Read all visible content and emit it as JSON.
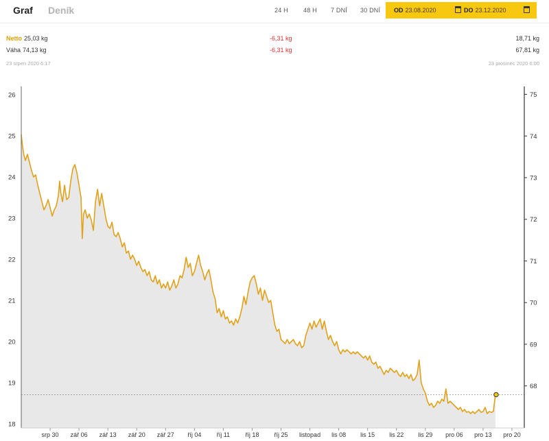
{
  "tabs": {
    "graf": "Graf",
    "denik": "Deník"
  },
  "ranges": [
    "24 H",
    "48 H",
    "7 DNÍ",
    "30 DNÍ"
  ],
  "date_from": {
    "prefix": "OD",
    "value": "23.08.2020"
  },
  "date_to": {
    "prefix": "DO",
    "value": "23.12.2020"
  },
  "summary": {
    "netto": {
      "label": "Netto",
      "start": "25,03 kg",
      "delta": "-6,31 kg",
      "end": "18,71 kg"
    },
    "vaha": {
      "label": "Váha",
      "start": "74,13 kg",
      "delta": "-6,31 kg",
      "end": "67,81 kg"
    },
    "start_time": "23 srpen 2020 6:17",
    "end_time": "23 prosinec 2020 6:00"
  },
  "colors": {
    "accent": "#f7c80f",
    "line": "#e0a21a",
    "delta": "#e0312d",
    "area": "#e8e8e8"
  },
  "chart_data": {
    "type": "area",
    "y_left": {
      "ticks": [
        18,
        19,
        20,
        21,
        22,
        23,
        24,
        25,
        26
      ],
      "range": [
        17.9,
        26.2
      ]
    },
    "y_right": {
      "ticks": [
        68,
        69,
        70,
        71,
        72,
        73,
        74,
        75
      ],
      "range": [
        66.99,
        75.19
      ]
    },
    "x_ticks": [
      "srp 30",
      "zář 06",
      "zář 13",
      "zář 20",
      "zář 27",
      "říj 04",
      "říj 11",
      "říj 18",
      "říj 25",
      "listopad",
      "lis 08",
      "lis 15",
      "lis 22",
      "lis 29",
      "pro 06",
      "pro 13",
      "pro 20"
    ],
    "x_domain_days": 122,
    "reference_line": 18.71,
    "series": [
      {
        "name": "Netto",
        "points": [
          [
            0,
            25.03
          ],
          [
            0.3,
            24.75
          ],
          [
            0.6,
            24.55
          ],
          [
            1,
            24.4
          ],
          [
            1.5,
            24.55
          ],
          [
            2,
            24.35
          ],
          [
            2.5,
            24.15
          ],
          [
            3,
            24.0
          ],
          [
            3.5,
            24.05
          ],
          [
            4,
            23.8
          ],
          [
            4.5,
            23.6
          ],
          [
            5,
            23.4
          ],
          [
            5.5,
            23.2
          ],
          [
            6,
            23.3
          ],
          [
            6.5,
            23.45
          ],
          [
            7,
            23.25
          ],
          [
            7.5,
            23.05
          ],
          [
            8,
            23.2
          ],
          [
            8.5,
            23.3
          ],
          [
            9,
            23.55
          ],
          [
            9.3,
            23.9
          ],
          [
            9.6,
            23.6
          ],
          [
            10,
            23.4
          ],
          [
            10.5,
            23.8
          ],
          [
            11,
            23.45
          ],
          [
            11.5,
            23.5
          ],
          [
            12,
            23.9
          ],
          [
            12.5,
            24.2
          ],
          [
            13,
            24.3
          ],
          [
            13.5,
            24.1
          ],
          [
            14,
            23.8
          ],
          [
            14.5,
            23.5
          ],
          [
            14.8,
            22.5
          ],
          [
            15.1,
            23.1
          ],
          [
            15.5,
            23.2
          ],
          [
            16,
            23.0
          ],
          [
            16.5,
            23.1
          ],
          [
            17,
            22.95
          ],
          [
            17.5,
            22.7
          ],
          [
            18,
            23.4
          ],
          [
            18.5,
            23.7
          ],
          [
            19,
            23.3
          ],
          [
            19.5,
            23.6
          ],
          [
            20,
            23.3
          ],
          [
            20.5,
            23.0
          ],
          [
            21,
            22.8
          ],
          [
            21.5,
            22.75
          ],
          [
            22,
            22.9
          ],
          [
            22.5,
            22.6
          ],
          [
            23,
            22.55
          ],
          [
            23.5,
            22.65
          ],
          [
            24,
            22.5
          ],
          [
            24.5,
            22.3
          ],
          [
            25,
            22.4
          ],
          [
            25.5,
            22.15
          ],
          [
            26,
            22.2
          ],
          [
            26.5,
            22.0
          ],
          [
            27,
            22.1
          ],
          [
            27.5,
            22.0
          ],
          [
            28,
            21.85
          ],
          [
            28.5,
            21.95
          ],
          [
            29,
            21.8
          ],
          [
            29.5,
            21.7
          ],
          [
            30,
            21.75
          ],
          [
            30.5,
            21.6
          ],
          [
            31,
            21.7
          ],
          [
            31.5,
            21.5
          ],
          [
            32,
            21.45
          ],
          [
            32.5,
            21.6
          ],
          [
            33,
            21.4
          ],
          [
            33.5,
            21.5
          ],
          [
            34,
            21.3
          ],
          [
            34.5,
            21.4
          ],
          [
            35,
            21.3
          ],
          [
            35.5,
            21.45
          ],
          [
            36,
            21.25
          ],
          [
            36.5,
            21.35
          ],
          [
            37,
            21.5
          ],
          [
            37.5,
            21.3
          ],
          [
            38,
            21.4
          ],
          [
            38.5,
            21.6
          ],
          [
            39,
            21.55
          ],
          [
            39.5,
            21.75
          ],
          [
            40,
            22.05
          ],
          [
            40.5,
            21.8
          ],
          [
            41,
            21.9
          ],
          [
            41.5,
            21.6
          ],
          [
            42,
            21.7
          ],
          [
            42.5,
            21.9
          ],
          [
            43,
            22.1
          ],
          [
            43.5,
            21.85
          ],
          [
            44,
            21.7
          ],
          [
            44.5,
            21.5
          ],
          [
            45,
            21.65
          ],
          [
            45.5,
            21.75
          ],
          [
            46,
            21.5
          ],
          [
            46.5,
            21.2
          ],
          [
            47,
            21.05
          ],
          [
            47.5,
            20.7
          ],
          [
            48,
            20.8
          ],
          [
            48.5,
            20.6
          ],
          [
            49,
            20.75
          ],
          [
            49.5,
            20.55
          ],
          [
            50,
            20.6
          ],
          [
            50.5,
            20.45
          ],
          [
            51,
            20.5
          ],
          [
            51.5,
            20.4
          ],
          [
            52,
            20.55
          ],
          [
            52.5,
            20.45
          ],
          [
            53,
            20.6
          ],
          [
            53.5,
            20.8
          ],
          [
            54,
            21.1
          ],
          [
            54.5,
            20.9
          ],
          [
            55,
            21.2
          ],
          [
            55.5,
            21.45
          ],
          [
            56,
            21.55
          ],
          [
            56.5,
            21.6
          ],
          [
            57,
            21.4
          ],
          [
            57.5,
            21.15
          ],
          [
            58,
            21.3
          ],
          [
            58.5,
            21.0
          ],
          [
            59,
            21.25
          ],
          [
            59.5,
            21.1
          ],
          [
            60,
            20.95
          ],
          [
            60.5,
            21.0
          ],
          [
            61,
            20.7
          ],
          [
            61.5,
            20.4
          ],
          [
            62,
            20.25
          ],
          [
            62.5,
            20.3
          ],
          [
            63,
            20.05
          ],
          [
            63.5,
            20.0
          ],
          [
            64,
            19.95
          ],
          [
            64.5,
            20.05
          ],
          [
            65,
            19.95
          ],
          [
            65.5,
            20.0
          ],
          [
            66,
            20.05
          ],
          [
            66.5,
            19.95
          ],
          [
            67,
            19.9
          ],
          [
            67.5,
            20.0
          ],
          [
            68,
            19.85
          ],
          [
            68.5,
            19.9
          ],
          [
            69,
            20.15
          ],
          [
            69.5,
            20.3
          ],
          [
            70,
            20.45
          ],
          [
            70.5,
            20.3
          ],
          [
            71,
            20.5
          ],
          [
            71.5,
            20.35
          ],
          [
            72,
            20.45
          ],
          [
            72.5,
            20.55
          ],
          [
            73,
            20.3
          ],
          [
            73.5,
            20.5
          ],
          [
            74,
            20.25
          ],
          [
            74.5,
            20.05
          ],
          [
            75,
            20.15
          ],
          [
            75.5,
            20.0
          ],
          [
            76,
            19.9
          ],
          [
            76.5,
            20.0
          ],
          [
            77,
            19.8
          ],
          [
            77.5,
            19.7
          ],
          [
            78,
            19.8
          ],
          [
            78.5,
            19.75
          ],
          [
            79,
            19.8
          ],
          [
            79.5,
            19.75
          ],
          [
            80,
            19.7
          ],
          [
            80.5,
            19.75
          ],
          [
            81,
            19.7
          ],
          [
            81.5,
            19.75
          ],
          [
            82,
            19.7
          ],
          [
            82.5,
            19.65
          ],
          [
            83,
            19.6
          ],
          [
            83.5,
            19.65
          ],
          [
            84,
            19.55
          ],
          [
            84.5,
            19.65
          ],
          [
            85,
            19.5
          ],
          [
            85.5,
            19.45
          ],
          [
            86,
            19.5
          ],
          [
            86.5,
            19.35
          ],
          [
            87,
            19.4
          ],
          [
            87.5,
            19.3
          ],
          [
            88,
            19.2
          ],
          [
            88.5,
            19.3
          ],
          [
            89,
            19.25
          ],
          [
            89.5,
            19.35
          ],
          [
            90,
            19.3
          ],
          [
            90.5,
            19.25
          ],
          [
            91,
            19.3
          ],
          [
            91.5,
            19.2
          ],
          [
            92,
            19.15
          ],
          [
            92.5,
            19.25
          ],
          [
            93,
            19.15
          ],
          [
            93.5,
            19.2
          ],
          [
            94,
            19.1
          ],
          [
            94.5,
            19.2
          ],
          [
            95,
            19.05
          ],
          [
            95.5,
            19.1
          ],
          [
            96,
            19.2
          ],
          [
            96.5,
            19.55
          ],
          [
            97,
            19.0
          ],
          [
            97.5,
            18.85
          ],
          [
            98,
            18.75
          ],
          [
            98.5,
            18.55
          ],
          [
            99,
            18.45
          ],
          [
            99.5,
            18.5
          ],
          [
            100,
            18.4
          ],
          [
            100.5,
            18.45
          ],
          [
            101,
            18.55
          ],
          [
            101.5,
            18.5
          ],
          [
            102,
            18.6
          ],
          [
            102.5,
            18.55
          ],
          [
            103,
            18.85
          ],
          [
            103.5,
            18.5
          ],
          [
            104,
            18.55
          ],
          [
            104.5,
            18.5
          ],
          [
            105,
            18.45
          ],
          [
            105.5,
            18.4
          ],
          [
            106,
            18.35
          ],
          [
            106.5,
            18.4
          ],
          [
            107,
            18.3
          ],
          [
            107.5,
            18.35
          ],
          [
            108,
            18.28
          ],
          [
            108.5,
            18.3
          ],
          [
            109,
            18.25
          ],
          [
            109.5,
            18.3
          ],
          [
            110,
            18.25
          ],
          [
            110.5,
            18.3
          ],
          [
            111,
            18.35
          ],
          [
            111.5,
            18.28
          ],
          [
            112,
            18.3
          ],
          [
            112.5,
            18.4
          ],
          [
            113,
            18.25
          ],
          [
            113.5,
            18.3
          ],
          [
            114,
            18.28
          ],
          [
            114.5,
            18.3
          ],
          [
            115,
            18.71
          ]
        ]
      }
    ]
  }
}
